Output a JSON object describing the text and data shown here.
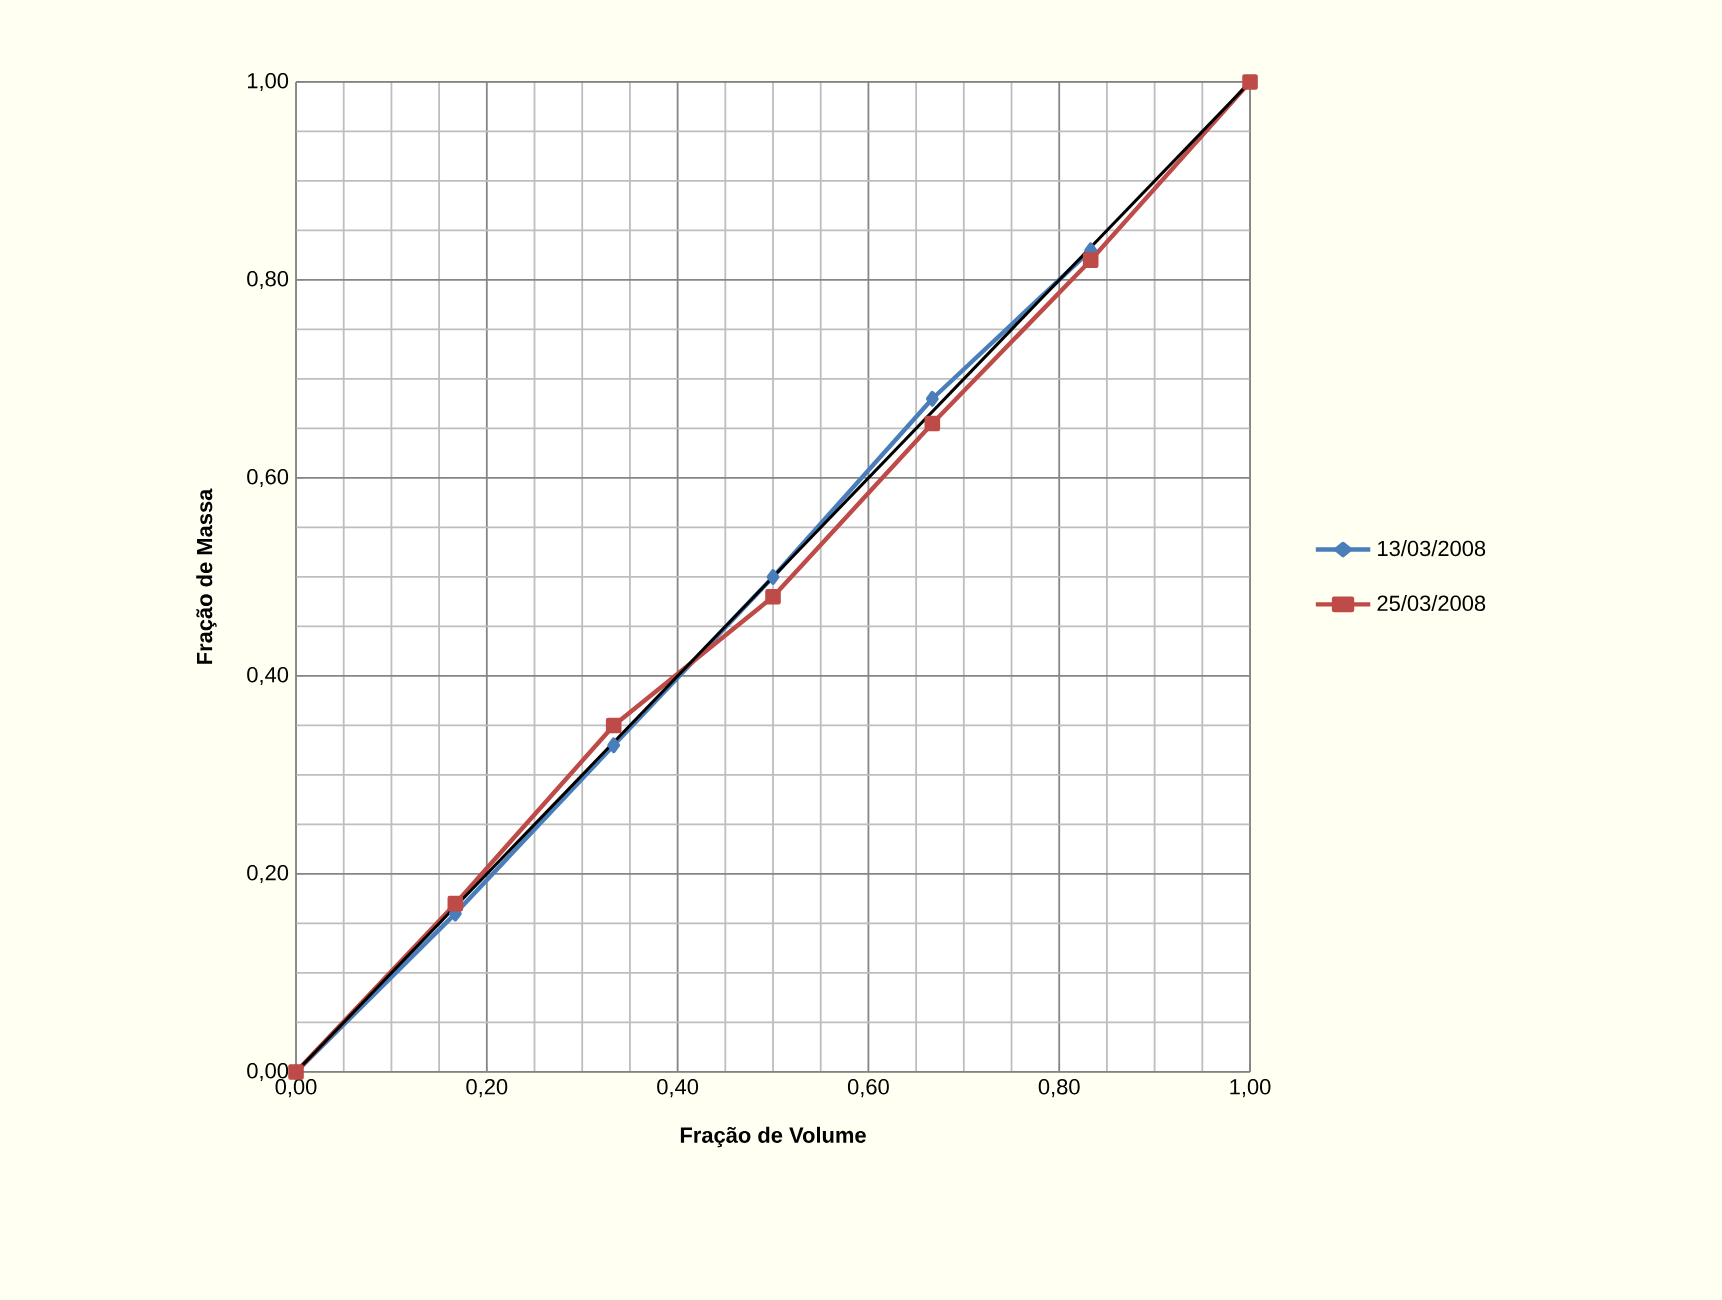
{
  "chart_data": {
    "type": "line",
    "xlabel": "Fração de Volume",
    "ylabel": "Fração  de Massa",
    "xlim": [
      0,
      1
    ],
    "ylim": [
      0,
      1
    ],
    "xticks": [
      {
        "value": 0,
        "label": "0,00"
      },
      {
        "value": 0.2,
        "label": "0,20"
      },
      {
        "value": 0.4,
        "label": "0,40"
      },
      {
        "value": 0.6,
        "label": "0,60"
      },
      {
        "value": 0.8,
        "label": "0,80"
      },
      {
        "value": 1,
        "label": "1,00"
      }
    ],
    "yticks": [
      {
        "value": 0,
        "label": "0,00"
      },
      {
        "value": 0.2,
        "label": "0,20"
      },
      {
        "value": 0.4,
        "label": "0,40"
      },
      {
        "value": 0.6,
        "label": "0,60"
      },
      {
        "value": 0.8,
        "label": "0,80"
      },
      {
        "value": 1,
        "label": "1,00"
      }
    ],
    "grid": true,
    "legend": "right",
    "series": [
      {
        "name": "13/03/2008",
        "color": "#4a7ebb",
        "marker": "diamond",
        "x": [
          0,
          0.167,
          0.333,
          0.5,
          0.667,
          0.833
        ],
        "values": [
          0,
          0.16,
          0.33,
          0.5,
          0.68,
          0.83
        ]
      },
      {
        "name": "25/03/2008",
        "color": "#be4b48",
        "marker": "square",
        "x": [
          0,
          0.167,
          0.333,
          0.5,
          0.667,
          0.833,
          1
        ],
        "values": [
          0,
          0.17,
          0.35,
          0.48,
          0.655,
          0.82,
          1
        ]
      },
      {
        "color": "#000000",
        "marker": "none",
        "x": [
          0,
          1
        ],
        "values": [
          0,
          1
        ]
      }
    ]
  }
}
